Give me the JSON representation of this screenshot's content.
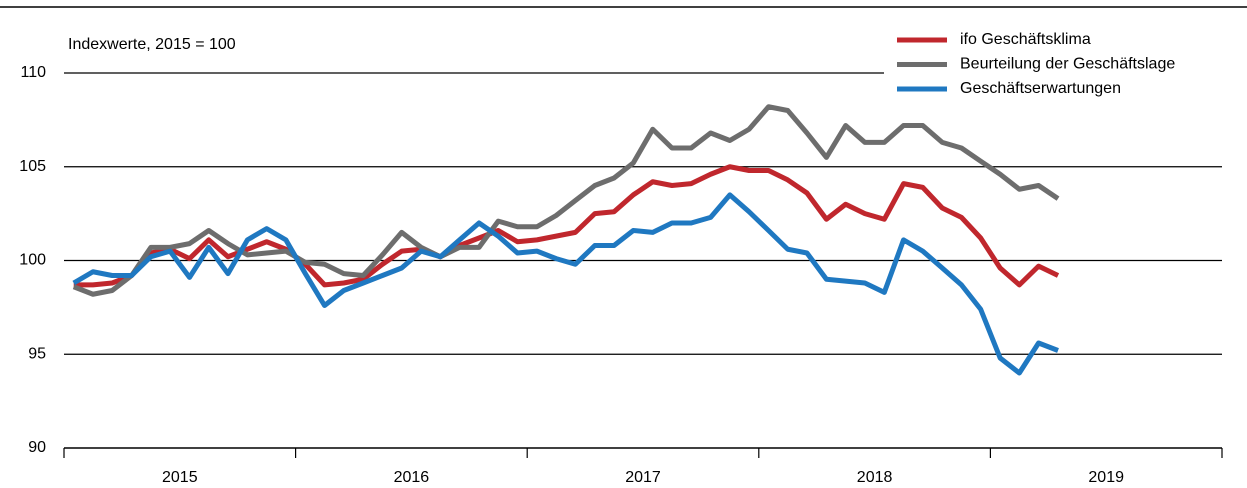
{
  "chart_data": {
    "type": "line",
    "annotation": "Indexwerte, 2015 = 100",
    "x": [
      2015.042,
      2015.125,
      2015.208,
      2015.292,
      2015.375,
      2015.458,
      2015.542,
      2015.625,
      2015.708,
      2015.792,
      2015.875,
      2015.958,
      2016.042,
      2016.125,
      2016.208,
      2016.292,
      2016.375,
      2016.458,
      2016.542,
      2016.625,
      2016.708,
      2016.792,
      2016.875,
      2016.958,
      2017.042,
      2017.125,
      2017.208,
      2017.292,
      2017.375,
      2017.458,
      2017.542,
      2017.625,
      2017.708,
      2017.792,
      2017.875,
      2017.958,
      2018.042,
      2018.125,
      2018.208,
      2018.292,
      2018.375,
      2018.458,
      2018.542,
      2018.625,
      2018.708,
      2018.792,
      2018.875,
      2018.958,
      2019.042,
      2019.125,
      2019.208,
      2019.292
    ],
    "series": [
      {
        "name": "ifo Geschäftsklima",
        "color": "#c0272d",
        "values": [
          98.7,
          98.7,
          98.8,
          99.2,
          100.4,
          100.6,
          100.1,
          101.1,
          100.2,
          100.6,
          101.0,
          100.6,
          99.8,
          98.7,
          98.8,
          99.0,
          99.8,
          100.5,
          100.6,
          100.2,
          100.8,
          101.2,
          101.6,
          101.0,
          101.1,
          101.3,
          101.5,
          102.5,
          102.6,
          103.5,
          104.2,
          104.0,
          104.1,
          104.6,
          105.0,
          104.8,
          104.8,
          104.3,
          103.6,
          102.2,
          103.0,
          102.5,
          102.2,
          104.1,
          103.9,
          102.8,
          102.3,
          101.2,
          99.6,
          98.7,
          99.7,
          99.2
        ]
      },
      {
        "name": "Beurteilung der Geschäftslage",
        "color": "#6d6d6d",
        "values": [
          98.6,
          98.2,
          98.4,
          99.2,
          100.7,
          100.7,
          100.9,
          101.6,
          100.9,
          100.3,
          100.4,
          100.5,
          99.9,
          99.8,
          99.3,
          99.2,
          100.3,
          101.5,
          100.7,
          100.2,
          100.7,
          100.7,
          102.1,
          101.8,
          101.8,
          102.4,
          103.2,
          104.0,
          104.4,
          105.2,
          107.0,
          106.0,
          106.0,
          106.8,
          106.4,
          107.0,
          108.2,
          108.0,
          106.8,
          105.5,
          107.2,
          106.3,
          106.3,
          107.2,
          107.2,
          106.3,
          106.0,
          105.3,
          104.6,
          103.8,
          104.0,
          103.3
        ]
      },
      {
        "name": "Geschäftserwartungen",
        "color": "#1f78c1",
        "values": [
          98.8,
          99.4,
          99.2,
          99.2,
          100.2,
          100.5,
          99.1,
          100.7,
          99.3,
          101.1,
          101.7,
          101.1,
          99.3,
          97.6,
          98.4,
          98.8,
          99.2,
          99.6,
          100.5,
          100.2,
          101.1,
          102.0,
          101.3,
          100.4,
          100.5,
          100.1,
          99.8,
          100.8,
          100.8,
          101.6,
          101.5,
          102.0,
          102.0,
          102.3,
          103.5,
          102.6,
          101.6,
          100.6,
          100.4,
          99.0,
          98.9,
          98.8,
          98.3,
          101.1,
          100.5,
          99.6,
          98.7,
          97.4,
          94.8,
          94.0,
          95.6,
          95.2
        ]
      }
    ],
    "xlim": [
      2015,
      2020
    ],
    "xticks": [
      {
        "value": 2015.5,
        "label": "2015"
      },
      {
        "value": 2016.5,
        "label": "2016"
      },
      {
        "value": 2017.5,
        "label": "2017"
      },
      {
        "value": 2018.5,
        "label": "2018"
      },
      {
        "value": 2019.5,
        "label": "2019"
      }
    ],
    "ylim": [
      90,
      110
    ],
    "yticks": [
      90,
      95,
      100,
      105,
      110
    ],
    "grid": true,
    "legend": "top-right"
  }
}
